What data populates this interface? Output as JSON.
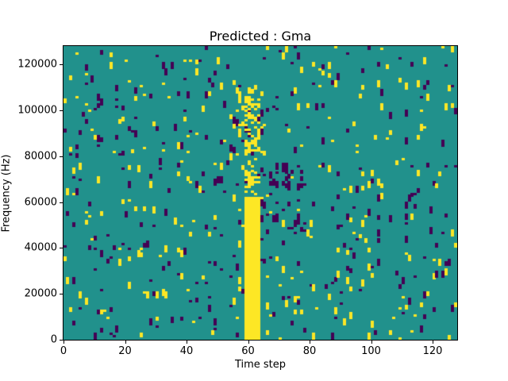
{
  "chart_data": {
    "type": "heatmap",
    "title": "Predicted : Gma",
    "xlabel": "Time step",
    "ylabel": "Frequency (Hz)",
    "xlim": [
      0,
      128
    ],
    "ylim": [
      0,
      128000
    ],
    "x_ticks": [
      0,
      20,
      40,
      60,
      80,
      100,
      120
    ],
    "y_ticks": [
      0,
      20000,
      40000,
      60000,
      80000,
      100000,
      120000
    ],
    "grid": {
      "cols": 128,
      "rows": 128,
      "hz_per_row": 1000,
      "grid_lines": false,
      "legend": "none"
    },
    "colors": {
      "cell_mid": "#21918c",
      "cell_high": "#fde725",
      "cell_low": "#440154",
      "axis": "#000000",
      "figure_background": "#ffffff"
    },
    "pattern": {
      "seed": 1337,
      "yellow_density": 0.016,
      "purple_density": 0.019,
      "run_max": 3,
      "yellow_band": {
        "x0": 59,
        "x1": 64,
        "solid_rows": [
          0,
          62
        ],
        "sparse_rows": [
          62,
          106
        ],
        "sparse_density": 0.35
      },
      "purple_cluster": {
        "x0": 64,
        "x1": 79,
        "rows": [
          45,
          76
        ],
        "density": 0.11,
        "run_max": 3
      },
      "secondary_yellow_cluster": {
        "x0": 55,
        "x1": 66,
        "rows": [
          80,
          112
        ],
        "density": 0.1,
        "run_max": 2
      }
    }
  }
}
